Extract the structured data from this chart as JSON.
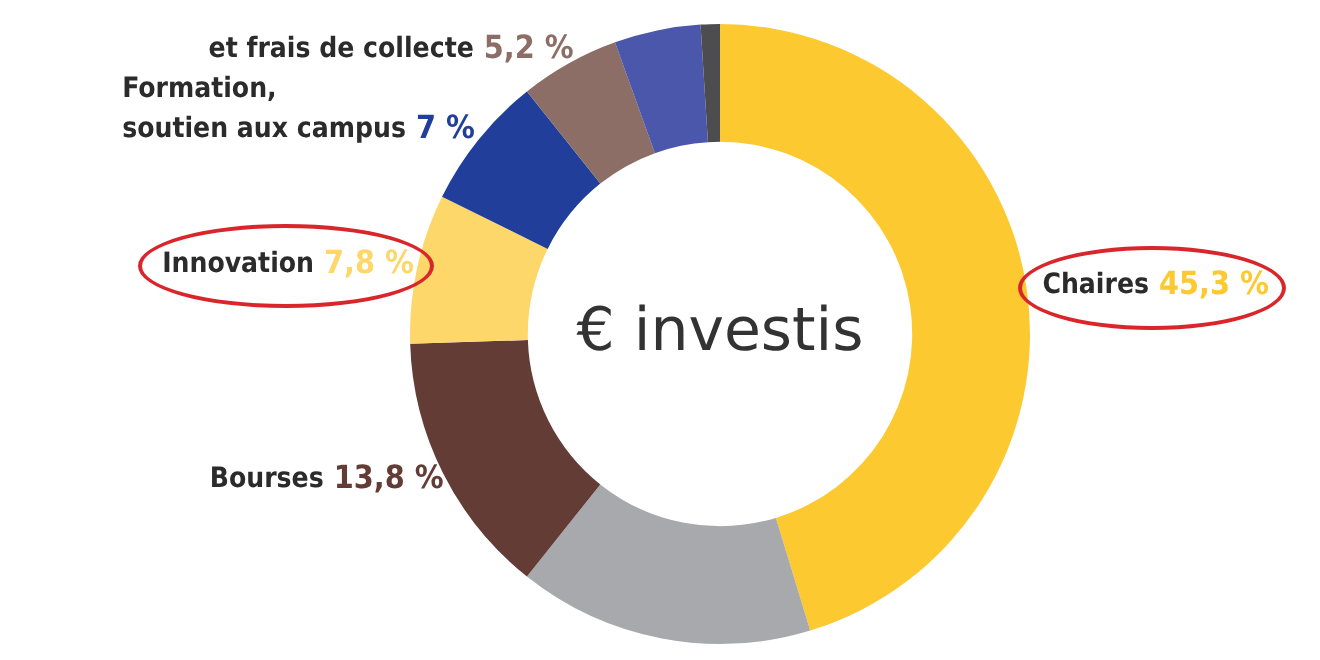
{
  "chart_data": {
    "type": "donut",
    "title": "€ investis",
    "categories": [
      "Chaires",
      null,
      "Bourses",
      "Innovation",
      "Formation,\nsoutien aux campus",
      "et frais de collecte",
      null,
      null
    ],
    "values": [
      45.3,
      15.4,
      13.8,
      7.8,
      7,
      5.2,
      4.5,
      1
    ],
    "value_labels": [
      "45,3 %",
      null,
      "13,8 %",
      "7,8 %",
      "7 %",
      "5,2 %",
      null,
      null
    ],
    "colors": [
      "#fcc930",
      "#a8a9ad",
      "#633c36",
      "#fdd76a",
      "#213f9a",
      "#8d6e66",
      "#4b57ab",
      "#4d4d4f"
    ],
    "legend": false
  }
}
